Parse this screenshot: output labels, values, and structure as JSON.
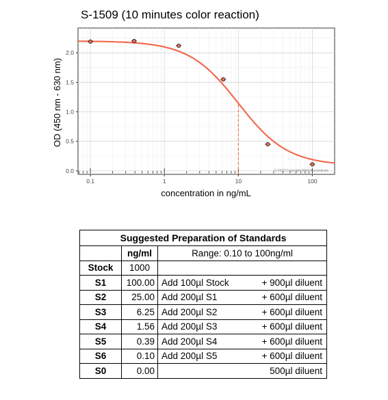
{
  "chart_data": {
    "type": "line",
    "title": "S-1509 (10 minutes color reaction)",
    "xlabel": "concentration in ng/mL",
    "ylabel": "OD (450 nm - 630 nm)",
    "x_scale": "log",
    "xlim": [
      0.068,
      200
    ],
    "ylim": [
      -0.06,
      2.42
    ],
    "x_ticks": [
      0.1,
      1,
      10,
      100
    ],
    "x_tick_labels": [
      "0.1",
      "1",
      "10",
      "100"
    ],
    "y_ticks": [
      0.0,
      0.5,
      1.0,
      1.5,
      2.0
    ],
    "y_tick_labels": [
      "0.0",
      "0.5",
      "1.0",
      "1.5",
      "2.0"
    ],
    "grid": true,
    "curve_color": "#f26b50",
    "ec50_x": 10,
    "ec50_y": 1.12,
    "curve_model": {
      "top": 2.2,
      "bottom": 0.09,
      "ec50": 10,
      "hill": 1.3
    },
    "points": [
      {
        "x": 0.1,
        "y": 2.19
      },
      {
        "x": 0.39,
        "y": 2.2
      },
      {
        "x": 1.56,
        "y": 2.12
      },
      {
        "x": 6.25,
        "y": 1.55
      },
      {
        "x": 25.0,
        "y": 0.45
      },
      {
        "x": 100.0,
        "y": 0.11
      }
    ],
    "copyright": "© 2023 Copyright BMA Biomedicals"
  },
  "table": {
    "title": "Suggested Preparation of Standards",
    "header_unit": "ng/ml",
    "header_range": "Range: 0.10 to 100ng/ml",
    "rows": [
      {
        "name": "Stock",
        "value": "1000",
        "step": "",
        "diluent": ""
      },
      {
        "name": "S1",
        "value": "100.00",
        "step": "Add 100µl Stock",
        "diluent": "+ 900µl diluent"
      },
      {
        "name": "S2",
        "value": "25.00",
        "step": "Add 200µl S1",
        "diluent": "+ 600µl diluent"
      },
      {
        "name": "S3",
        "value": "6.25",
        "step": "Add 200µl S2",
        "diluent": "+ 600µl diluent"
      },
      {
        "name": "S4",
        "value": "1.56",
        "step": "Add 200µl S3",
        "diluent": "+ 600µl diluent"
      },
      {
        "name": "S5",
        "value": "0.39",
        "step": "Add 200µl S4",
        "diluent": "+ 600µl diluent"
      },
      {
        "name": "S6",
        "value": "0.10",
        "step": "Add 200µl S5",
        "diluent": "+ 600µl diluent"
      },
      {
        "name": "S0",
        "value": "0.00",
        "step": "",
        "diluent": "500µl diluent"
      }
    ]
  }
}
